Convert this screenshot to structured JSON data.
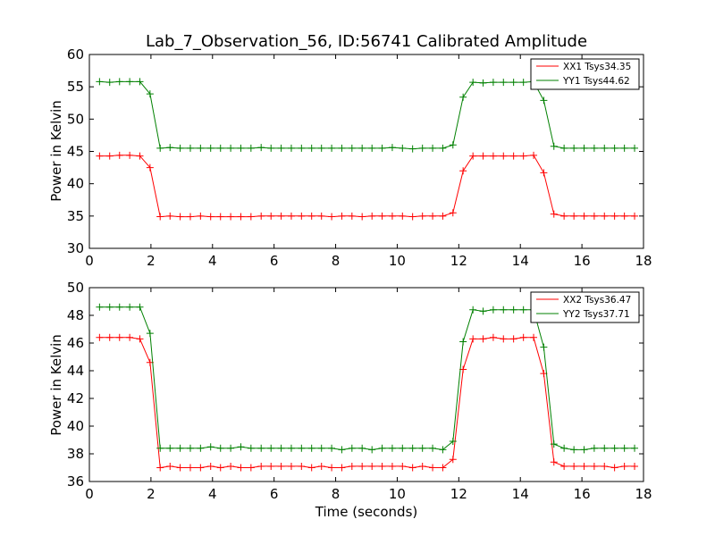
{
  "chart_data": [
    {
      "type": "line",
      "title": "Lab_7_Observation_56, ID:56741 Calibrated Amplitude",
      "xlabel": "",
      "ylabel": "Power in Kelvin",
      "xlim": [
        0,
        18
      ],
      "ylim": [
        30,
        60
      ],
      "xticks": [
        0,
        2,
        4,
        6,
        8,
        10,
        12,
        14,
        16,
        18
      ],
      "yticks": [
        30,
        35,
        40,
        45,
        50,
        55,
        60
      ],
      "grid": false,
      "legend_position": "top-right",
      "marker": "+",
      "x": [
        0.33,
        0.66,
        0.98,
        1.31,
        1.64,
        1.97,
        2.3,
        2.62,
        2.95,
        3.28,
        3.61,
        3.94,
        4.26,
        4.59,
        4.92,
        5.25,
        5.58,
        5.9,
        6.23,
        6.56,
        6.89,
        7.22,
        7.54,
        7.87,
        8.2,
        8.53,
        8.86,
        9.18,
        9.51,
        9.84,
        10.17,
        10.5,
        10.82,
        11.15,
        11.48,
        11.81,
        12.14,
        12.46,
        12.79,
        13.12,
        13.45,
        13.78,
        14.1,
        14.43,
        14.76,
        15.09,
        15.42,
        15.74,
        16.07,
        16.4,
        16.73,
        17.06,
        17.38,
        17.71
      ],
      "series": [
        {
          "name": "XX1 Tsys34.35",
          "color": "#ff0000",
          "values": [
            44.3,
            44.3,
            44.4,
            44.4,
            44.3,
            42.5,
            34.9,
            35.0,
            34.9,
            34.9,
            35.0,
            34.9,
            34.9,
            34.9,
            34.9,
            34.9,
            35.0,
            35.0,
            35.0,
            35.0,
            35.0,
            35.0,
            35.0,
            34.9,
            35.0,
            35.0,
            34.9,
            35.0,
            35.0,
            35.0,
            35.0,
            34.9,
            35.0,
            35.0,
            35.0,
            35.5,
            42.0,
            44.3,
            44.3,
            44.3,
            44.3,
            44.3,
            44.3,
            44.4,
            41.7,
            35.3,
            35.0,
            35.0,
            35.0,
            35.0,
            35.0,
            35.0,
            35.0,
            35.0
          ]
        },
        {
          "name": "YY1 Tsys44.62",
          "color": "#008000",
          "values": [
            55.8,
            55.7,
            55.8,
            55.8,
            55.8,
            53.9,
            45.5,
            45.6,
            45.5,
            45.5,
            45.5,
            45.5,
            45.5,
            45.5,
            45.5,
            45.5,
            45.6,
            45.5,
            45.5,
            45.5,
            45.5,
            45.5,
            45.5,
            45.5,
            45.5,
            45.5,
            45.5,
            45.5,
            45.5,
            45.6,
            45.5,
            45.4,
            45.5,
            45.5,
            45.5,
            46.0,
            53.4,
            55.7,
            55.6,
            55.7,
            55.7,
            55.7,
            55.7,
            55.8,
            52.9,
            45.8,
            45.5,
            45.5,
            45.5,
            45.5,
            45.5,
            45.5,
            45.5,
            45.5
          ]
        }
      ]
    },
    {
      "type": "line",
      "title": "",
      "xlabel": "Time (seconds)",
      "ylabel": "Power in Kelvin",
      "xlim": [
        0,
        18
      ],
      "ylim": [
        36,
        50
      ],
      "xticks": [
        0,
        2,
        4,
        6,
        8,
        10,
        12,
        14,
        16,
        18
      ],
      "yticks": [
        36,
        38,
        40,
        42,
        44,
        46,
        48,
        50
      ],
      "grid": false,
      "legend_position": "top-right",
      "marker": "+",
      "x": [
        0.33,
        0.66,
        0.98,
        1.31,
        1.64,
        1.97,
        2.3,
        2.62,
        2.95,
        3.28,
        3.61,
        3.94,
        4.26,
        4.59,
        4.92,
        5.25,
        5.58,
        5.9,
        6.23,
        6.56,
        6.89,
        7.22,
        7.54,
        7.87,
        8.2,
        8.53,
        8.86,
        9.18,
        9.51,
        9.84,
        10.17,
        10.5,
        10.82,
        11.15,
        11.48,
        11.81,
        12.14,
        12.46,
        12.79,
        13.12,
        13.45,
        13.78,
        14.1,
        14.43,
        14.76,
        15.09,
        15.42,
        15.74,
        16.07,
        16.4,
        16.73,
        17.06,
        17.38,
        17.71
      ],
      "series": [
        {
          "name": "XX2 Tsys36.47",
          "color": "#ff0000",
          "values": [
            46.4,
            46.4,
            46.4,
            46.4,
            46.3,
            44.6,
            37.0,
            37.1,
            37.0,
            37.0,
            37.0,
            37.1,
            37.0,
            37.1,
            37.0,
            37.0,
            37.1,
            37.1,
            37.1,
            37.1,
            37.1,
            37.0,
            37.1,
            37.0,
            37.0,
            37.1,
            37.1,
            37.1,
            37.1,
            37.1,
            37.1,
            37.0,
            37.1,
            37.0,
            37.0,
            37.6,
            44.1,
            46.3,
            46.3,
            46.4,
            46.3,
            46.3,
            46.4,
            46.4,
            43.8,
            37.4,
            37.1,
            37.1,
            37.1,
            37.1,
            37.1,
            37.0,
            37.1,
            37.1
          ]
        },
        {
          "name": "YY2 Tsys37.71",
          "color": "#008000",
          "values": [
            48.6,
            48.6,
            48.6,
            48.6,
            48.6,
            46.7,
            38.4,
            38.4,
            38.4,
            38.4,
            38.4,
            38.5,
            38.4,
            38.4,
            38.5,
            38.4,
            38.4,
            38.4,
            38.4,
            38.4,
            38.4,
            38.4,
            38.4,
            38.4,
            38.3,
            38.4,
            38.4,
            38.3,
            38.4,
            38.4,
            38.4,
            38.4,
            38.4,
            38.4,
            38.3,
            38.9,
            46.1,
            48.4,
            48.3,
            48.4,
            48.4,
            48.4,
            48.4,
            48.4,
            45.7,
            38.7,
            38.4,
            38.3,
            38.3,
            38.4,
            38.4,
            38.4,
            38.4,
            38.4
          ]
        }
      ]
    }
  ]
}
